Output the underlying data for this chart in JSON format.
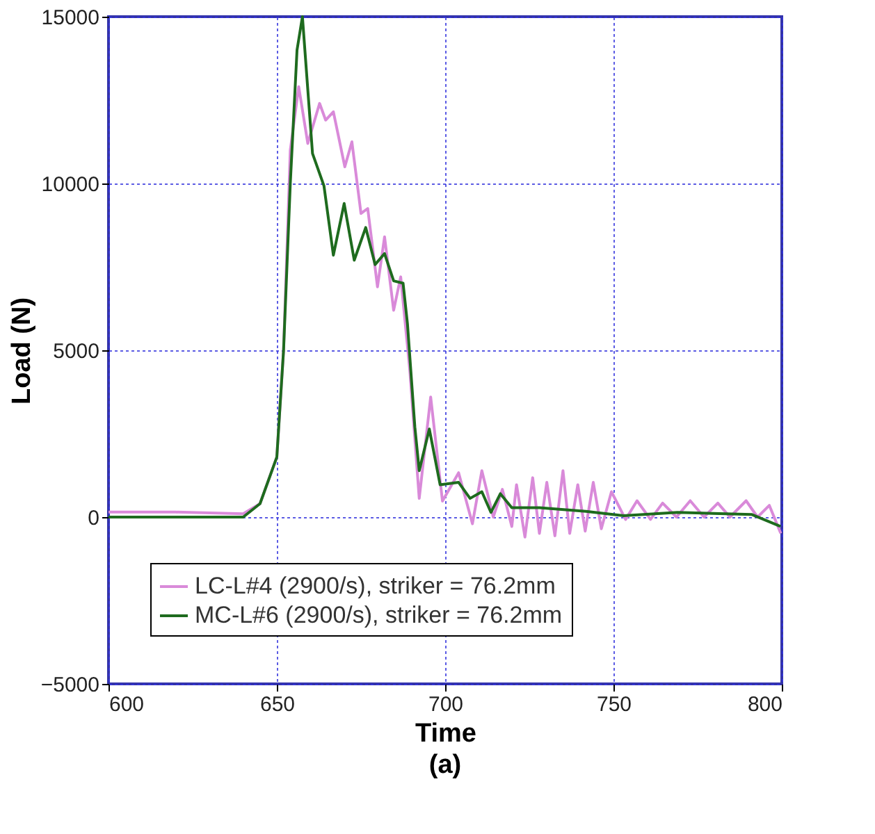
{
  "chart_data": {
    "type": "line",
    "xlabel": "Time",
    "ylabel": "Load (N)",
    "annotations": [
      "(a)"
    ],
    "xlim": [
      600,
      800
    ],
    "xticks": [
      600,
      650,
      700,
      750,
      800
    ],
    "ylim": [
      -5000,
      15000
    ],
    "yticks": [
      -5000,
      0,
      5000,
      10000,
      15000
    ],
    "grid": true,
    "legend": "bottom",
    "marker": "none",
    "line_style": "solid",
    "series": [
      {
        "name": "LC-L#4 (2900/s), striker = 76.2mm",
        "color": "#d98ad9",
        "x": [
          600,
          620,
          640,
          645,
          650,
          652,
          654,
          656.5,
          659.2,
          662.7,
          664.5,
          666.8,
          670.2,
          672.3,
          675,
          677,
          679.9,
          682,
          684.7,
          686.8,
          689.5,
          692.3,
          695.7,
          699.2,
          704,
          708.1,
          710.9,
          714.3,
          717,
          719.8,
          721.2,
          723.7,
          726,
          728,
          730.2,
          732.6,
          735,
          737,
          739.4,
          741.6,
          744,
          746.4,
          749.4,
          753.6,
          757,
          761,
          764.6,
          768.7,
          772.8,
          776.9,
          781,
          784.6,
          789.4,
          792.8,
          796.3,
          799.7
        ],
        "values": [
          150,
          150,
          100,
          400,
          1800,
          5000,
          11000,
          12900,
          11200,
          12400,
          11900,
          12150,
          10500,
          11250,
          9100,
          9250,
          6900,
          8400,
          6200,
          7200,
          4400,
          560,
          3600,
          480,
          1330,
          -200,
          1390,
          0,
          830,
          -280,
          970,
          -600,
          1180,
          -490,
          1040,
          -560,
          1390,
          -490,
          970,
          -420,
          1040,
          -350,
          760,
          -70,
          490,
          -70,
          420,
          0,
          490,
          0,
          420,
          0,
          490,
          0,
          350,
          -490
        ]
      },
      {
        "name": "MC-L#6 (2900/s), striker = 76.2mm",
        "color": "#1e6b1e",
        "x": [
          600,
          620,
          640,
          645,
          650,
          652,
          654,
          656,
          657.6,
          660.6,
          664,
          666.8,
          670,
          673,
          676.4,
          679.2,
          682,
          684.7,
          687.5,
          688.8,
          691,
          692.3,
          695.3,
          698.5,
          704,
          707.4,
          710.9,
          713.6,
          716.4,
          719.8,
          728,
          741.8,
          753,
          769,
          791,
          799.6
        ],
        "values": [
          0,
          0,
          0,
          400,
          1800,
          5000,
          10000,
          14000,
          15000,
          10900,
          9930,
          7850,
          9400,
          7700,
          8680,
          7570,
          7900,
          7080,
          7010,
          5800,
          2700,
          1390,
          2640,
          970,
          1040,
          560,
          760,
          140,
          700,
          280,
          280,
          170,
          40,
          140,
          80,
          -280
        ]
      }
    ]
  }
}
